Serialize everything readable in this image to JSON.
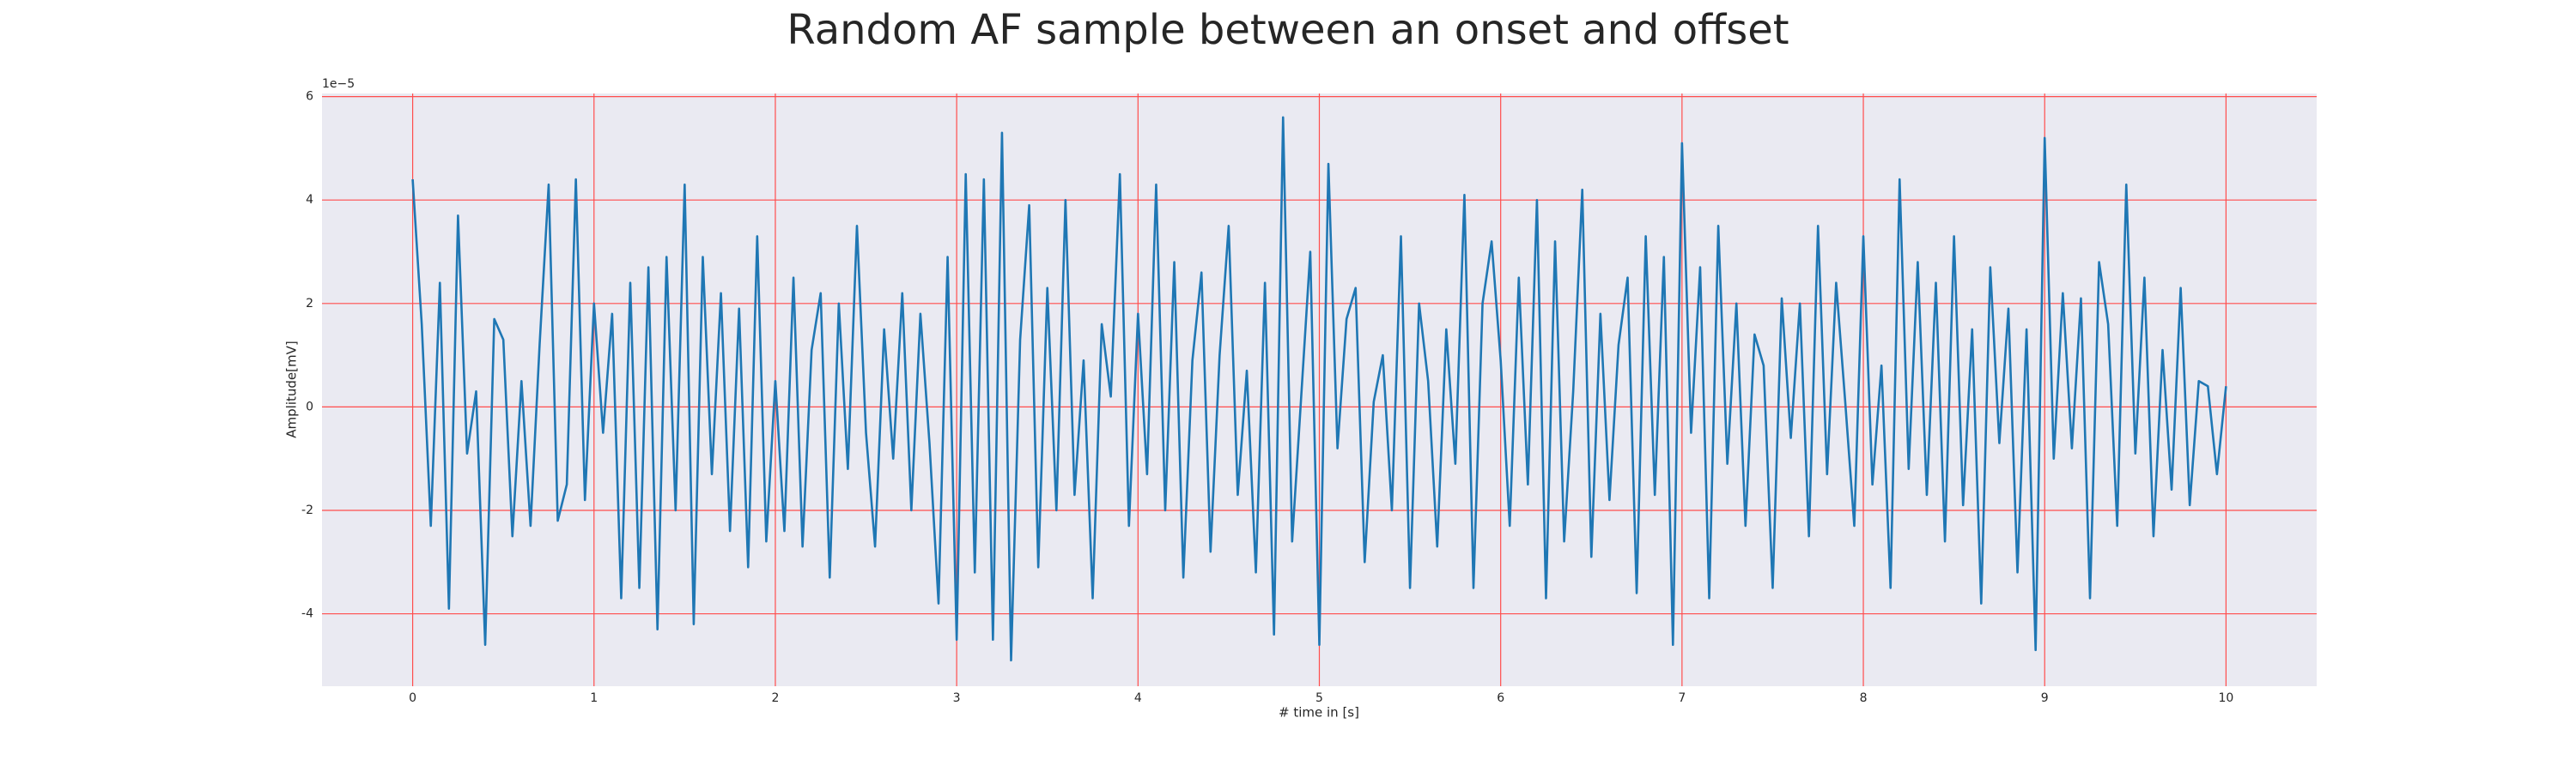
{
  "chart_data": {
    "type": "line",
    "title": "Random AF sample between an onset and offset",
    "xlabel": "# time in [s]",
    "ylabel": "Amplitude[mV]",
    "y_offset_label": "1e−5",
    "color": "#1f77b4",
    "grid": true,
    "xlim": [
      -0.5,
      10.5
    ],
    "ylim": [
      -5.4,
      6.06
    ],
    "xticks": [
      0,
      1,
      2,
      3,
      4,
      5,
      6,
      7,
      8,
      9,
      10
    ],
    "yticks": [
      -4,
      -2,
      0,
      2,
      4,
      6
    ],
    "x": [
      0,
      0.05,
      0.1,
      0.15,
      0.2,
      0.25,
      0.3,
      0.35,
      0.4,
      0.45,
      0.5,
      0.55,
      0.6,
      0.65,
      0.7,
      0.75,
      0.8,
      0.85,
      0.9,
      0.95,
      1,
      1.05,
      1.1,
      1.15,
      1.2,
      1.25,
      1.3,
      1.35,
      1.4,
      1.45,
      1.5,
      1.55,
      1.6,
      1.65,
      1.7,
      1.75,
      1.8,
      1.85,
      1.9,
      1.95,
      2,
      2.05,
      2.1,
      2.15,
      2.2,
      2.25,
      2.3,
      2.35,
      2.4,
      2.45,
      2.5,
      2.55,
      2.6,
      2.65,
      2.7,
      2.75,
      2.8,
      2.85,
      2.9,
      2.95,
      3,
      3.05,
      3.1,
      3.15,
      3.2,
      3.25,
      3.3,
      3.35,
      3.4,
      3.45,
      3.5,
      3.55,
      3.6,
      3.65,
      3.7,
      3.75,
      3.8,
      3.85,
      3.9,
      3.95,
      4,
      4.05,
      4.1,
      4.15,
      4.2,
      4.25,
      4.3,
      4.35,
      4.4,
      4.45,
      4.5,
      4.55,
      4.6,
      4.65,
      4.7,
      4.75,
      4.8,
      4.85,
      4.9,
      4.95,
      5,
      5.05,
      5.1,
      5.15,
      5.2,
      5.25,
      5.3,
      5.35,
      5.4,
      5.45,
      5.5,
      5.55,
      5.6,
      5.65,
      5.7,
      5.75,
      5.8,
      5.85,
      5.9,
      5.95,
      6,
      6.05,
      6.1,
      6.15,
      6.2,
      6.25,
      6.3,
      6.35,
      6.4,
      6.45,
      6.5,
      6.55,
      6.6,
      6.65,
      6.7,
      6.75,
      6.8,
      6.85,
      6.9,
      6.95,
      7,
      7.05,
      7.1,
      7.15,
      7.2,
      7.25,
      7.3,
      7.35,
      7.4,
      7.45,
      7.5,
      7.55,
      7.6,
      7.65,
      7.7,
      7.75,
      7.8,
      7.85,
      7.9,
      7.95,
      8,
      8.05,
      8.1,
      8.15,
      8.2,
      8.25,
      8.3,
      8.35,
      8.4,
      8.45,
      8.5,
      8.55,
      8.6,
      8.65,
      8.7,
      8.75,
      8.8,
      8.85,
      8.9,
      8.95,
      9,
      9.05,
      9.1,
      9.15,
      9.2,
      9.25,
      9.3,
      9.35,
      9.4,
      9.45,
      9.5,
      9.55,
      9.6,
      9.65,
      9.7,
      9.75,
      9.8,
      9.85,
      9.9,
      9.95,
      10
    ],
    "values": [
      4.4,
      1.6,
      -2.3,
      2.4,
      -3.9,
      3.7,
      -0.9,
      0.3,
      -4.6,
      1.7,
      1.3,
      -2.5,
      0.5,
      -2.3,
      1.2,
      4.3,
      -2.2,
      -1.5,
      4.4,
      -1.8,
      2.0,
      -0.5,
      1.8,
      -3.7,
      2.4,
      -3.5,
      2.7,
      -4.3,
      2.9,
      -2.0,
      4.3,
      -4.2,
      2.9,
      -1.3,
      2.2,
      -2.4,
      1.9,
      -3.1,
      3.3,
      -2.6,
      0.5,
      -2.4,
      2.5,
      -2.7,
      1.1,
      2.2,
      -3.3,
      2.0,
      -1.2,
      3.5,
      -0.5,
      -2.7,
      1.5,
      -1.0,
      2.2,
      -2.0,
      1.8,
      -0.7,
      -3.8,
      2.9,
      -4.5,
      4.5,
      -3.2,
      4.4,
      -4.5,
      5.3,
      -4.9,
      1.3,
      3.9,
      -3.1,
      2.3,
      -2.0,
      4.0,
      -1.7,
      0.9,
      -3.7,
      1.6,
      0.2,
      4.5,
      -2.3,
      1.8,
      -1.3,
      4.3,
      -2.0,
      2.8,
      -3.3,
      0.9,
      2.6,
      -2.8,
      1.0,
      3.5,
      -1.7,
      0.7,
      -3.2,
      2.4,
      -4.4,
      5.6,
      -2.6,
      0.2,
      3.0,
      -4.6,
      4.7,
      -0.8,
      1.7,
      2.3,
      -3.0,
      0.1,
      1.0,
      -2.0,
      3.3,
      -3.5,
      2.0,
      0.5,
      -2.7,
      1.5,
      -1.1,
      4.1,
      -3.5,
      2.0,
      3.2,
      0.9,
      -2.3,
      2.5,
      -1.5,
      4.0,
      -3.7,
      3.2,
      -2.6,
      0.3,
      4.2,
      -2.9,
      1.8,
      -1.8,
      1.2,
      2.5,
      -3.6,
      3.3,
      -1.7,
      2.9,
      -4.6,
      5.1,
      -0.5,
      2.7,
      -3.7,
      3.5,
      -1.1,
      2.0,
      -2.3,
      1.4,
      0.8,
      -3.5,
      2.1,
      -0.6,
      2.0,
      -2.5,
      3.5,
      -1.3,
      2.4,
      0.1,
      -2.3,
      3.3,
      -1.5,
      0.8,
      -3.5,
      4.4,
      -1.2,
      2.8,
      -1.7,
      2.4,
      -2.6,
      3.3,
      -1.9,
      1.5,
      -3.8,
      2.7,
      -0.7,
      1.9,
      -3.2,
      1.5,
      -4.7,
      5.2,
      -1.0,
      2.2,
      -0.8,
      2.1,
      -3.7,
      2.8,
      1.6,
      -2.3,
      4.3,
      -0.9,
      2.5,
      -2.5,
      1.1,
      -1.6,
      2.3,
      -1.9,
      0.5,
      0.4,
      -1.3,
      0.4
    ]
  }
}
